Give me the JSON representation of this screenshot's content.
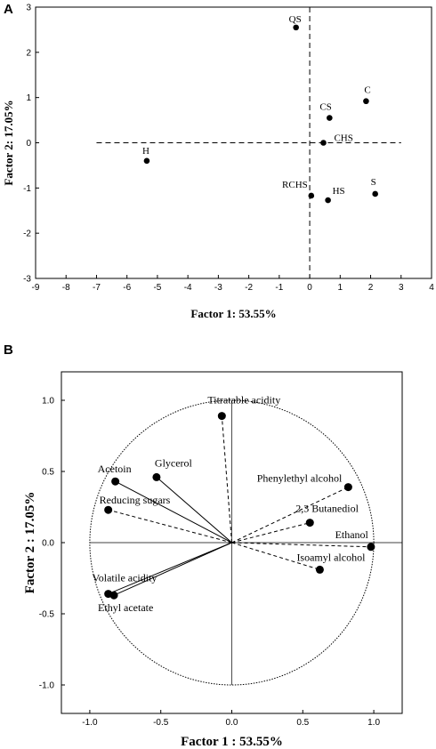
{
  "chart_data": [
    {
      "type": "scatter",
      "panel": "A",
      "xlabel": "Factor 1: 53.55%",
      "ylabel": "Factor 2: 17.05%",
      "xlim": [
        -9,
        4
      ],
      "ylim": [
        -3,
        3
      ],
      "xticks": [
        -9,
        -8,
        -7,
        -6,
        -5,
        -4,
        -3,
        -2,
        -1,
        0,
        1,
        2,
        3,
        4
      ],
      "yticks": [
        3,
        2,
        1,
        0,
        -1,
        -2,
        -3
      ],
      "points": [
        {
          "label": "QS",
          "x": -0.45,
          "y": 2.55
        },
        {
          "label": "C",
          "x": 1.85,
          "y": 0.92
        },
        {
          "label": "CS",
          "x": 0.65,
          "y": 0.55
        },
        {
          "label": "CHS",
          "x": 0.45,
          "y": 0.0
        },
        {
          "label": "H",
          "x": -5.35,
          "y": -0.4
        },
        {
          "label": "RCHS",
          "x": 0.05,
          "y": -1.17
        },
        {
          "label": "HS",
          "x": 0.6,
          "y": -1.27
        },
        {
          "label": "S",
          "x": 2.15,
          "y": -1.13
        }
      ],
      "ref_lines": {
        "x0_range": [
          -3,
          3
        ],
        "y0_range": [
          -7,
          3
        ]
      }
    },
    {
      "type": "scatter",
      "panel": "B",
      "xlabel": "Factor 1 : 53.55%",
      "ylabel": "Factor 2 : 17.05%",
      "xlim": [
        -1.2,
        1.2
      ],
      "ylim": [
        -1.2,
        1.2
      ],
      "xticks": [
        -1.0,
        -0.5,
        0.0,
        0.5,
        1.0
      ],
      "yticks": [
        1.0,
        0.5,
        0.0,
        -0.5,
        -1.0
      ],
      "variables": [
        {
          "label": "Titratable acidity",
          "x": -0.07,
          "y": 0.89
        },
        {
          "label": "Glycerol",
          "x": -0.53,
          "y": 0.46
        },
        {
          "label": "Acetoin",
          "x": -0.82,
          "y": 0.43
        },
        {
          "label": "Reducing sugars",
          "x": -0.87,
          "y": 0.23
        },
        {
          "label": "Phenylethyl alcohol",
          "x": 0.82,
          "y": 0.39
        },
        {
          "label": "2,3 Butanediol",
          "x": 0.55,
          "y": 0.14
        },
        {
          "label": "Ethanol",
          "x": 0.98,
          "y": -0.03
        },
        {
          "label": "Isoamyl alcohol",
          "x": 0.62,
          "y": -0.19
        },
        {
          "label": "Volatile acidity",
          "x": -0.87,
          "y": -0.36
        },
        {
          "label": "Ethyl acetate",
          "x": -0.83,
          "y": -0.37
        }
      ]
    }
  ]
}
